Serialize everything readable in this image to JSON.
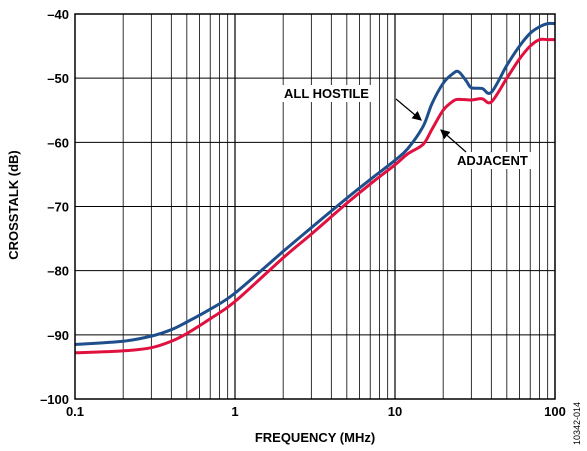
{
  "chart_data": {
    "type": "line",
    "xlabel": "FREQUENCY (MHz)",
    "ylabel": "CROSSTALK (dB)",
    "x_scale": "log",
    "xlim": [
      0.1,
      100
    ],
    "ylim": [
      -100,
      -40
    ],
    "x_ticks": [
      "0.1",
      "1",
      "10",
      "100"
    ],
    "y_ticks": [
      "–40",
      "–50",
      "–60",
      "–70",
      "–80",
      "–90",
      "–100"
    ],
    "grid": true,
    "figure_id": "10342-014",
    "colors": {
      "all_hostile": "#1f4e8c",
      "adjacent": "#e0103f"
    },
    "series": [
      {
        "name": "ALL HOSTILE",
        "x": [
          0.1,
          0.2,
          0.3,
          0.4,
          0.5,
          0.7,
          1,
          2,
          3,
          5,
          7,
          10,
          12,
          15,
          17,
          20,
          23,
          25,
          28,
          30,
          35,
          40,
          50,
          60,
          70,
          80,
          90,
          100
        ],
        "y": [
          -91.5,
          -91.0,
          -90.2,
          -89.2,
          -88.0,
          -86.0,
          -83.5,
          -77.0,
          -73.3,
          -68.7,
          -65.8,
          -62.8,
          -61.0,
          -57.5,
          -54.0,
          -50.8,
          -49.3,
          -49.0,
          -50.5,
          -51.5,
          -51.6,
          -52.2,
          -48.0,
          -45.0,
          -43.0,
          -42.0,
          -41.5,
          -41.5
        ]
      },
      {
        "name": "ADJACENT",
        "x": [
          0.1,
          0.2,
          0.3,
          0.4,
          0.5,
          0.7,
          1,
          2,
          3,
          5,
          7,
          10,
          12,
          15,
          17,
          20,
          23,
          25,
          30,
          35,
          40,
          50,
          60,
          70,
          80,
          90,
          100
        ],
        "y": [
          -92.8,
          -92.5,
          -92.0,
          -91.0,
          -89.8,
          -87.5,
          -84.8,
          -78.0,
          -74.3,
          -69.5,
          -66.5,
          -63.5,
          -61.8,
          -60.3,
          -58.0,
          -55.0,
          -53.6,
          -53.3,
          -53.4,
          -53.2,
          -53.7,
          -50.0,
          -47.0,
          -45.0,
          -44.0,
          -44.0,
          -44.0
        ]
      }
    ],
    "annotations": [
      {
        "text": "ALL HOSTILE",
        "target_series": "ALL HOSTILE"
      },
      {
        "text": "ADJACENT",
        "target_series": "ADJACENT"
      }
    ]
  }
}
